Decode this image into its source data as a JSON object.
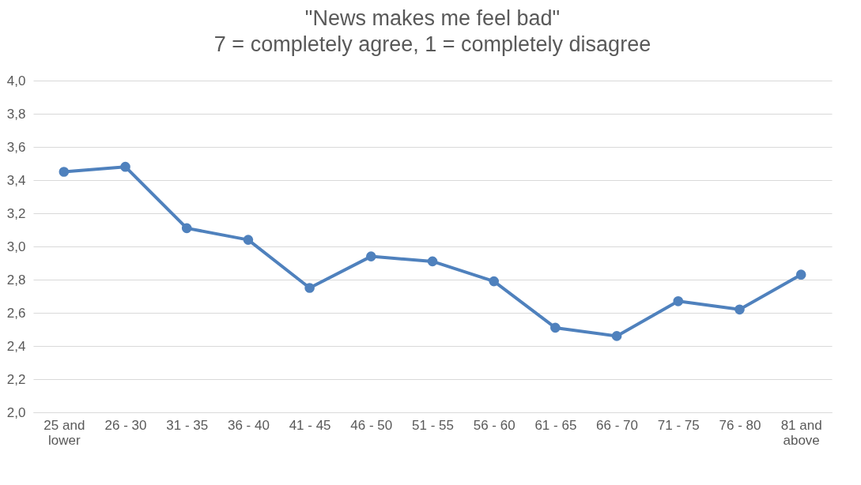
{
  "chart_data": {
    "type": "line",
    "title": "\"News makes me feel bad\"",
    "subtitle": "7 = completely agree, 1 = completely disagree",
    "categories": [
      "25 and lower",
      "26 - 30",
      "31 - 35",
      "36 - 40",
      "41 - 45",
      "46 - 50",
      "51 - 55",
      "56 - 60",
      "61 - 65",
      "66 - 70",
      "71 - 75",
      "76 - 80",
      "81 and above"
    ],
    "series": [
      {
        "color": "#4f81bd",
        "values": [
          3.45,
          3.48,
          3.11,
          3.04,
          2.75,
          2.94,
          2.91,
          2.79,
          2.51,
          2.46,
          2.67,
          2.62,
          2.83
        ]
      }
    ],
    "ylim": [
      2.0,
      4.0
    ],
    "yticks": [
      {
        "value": 2.0,
        "label": "2,0"
      },
      {
        "value": 2.2,
        "label": "2,2"
      },
      {
        "value": 2.4,
        "label": "2,4"
      },
      {
        "value": 2.6,
        "label": "2,6"
      },
      {
        "value": 2.8,
        "label": "2,8"
      },
      {
        "value": 3.0,
        "label": "3,0"
      },
      {
        "value": 3.2,
        "label": "3,2"
      },
      {
        "value": 3.4,
        "label": "3,4"
      },
      {
        "value": 3.6,
        "label": "3,6"
      },
      {
        "value": 3.8,
        "label": "3,8"
      },
      {
        "value": 4.0,
        "label": "4,0"
      }
    ],
    "grid": "y",
    "marker": "circle",
    "line_style": "solid"
  }
}
